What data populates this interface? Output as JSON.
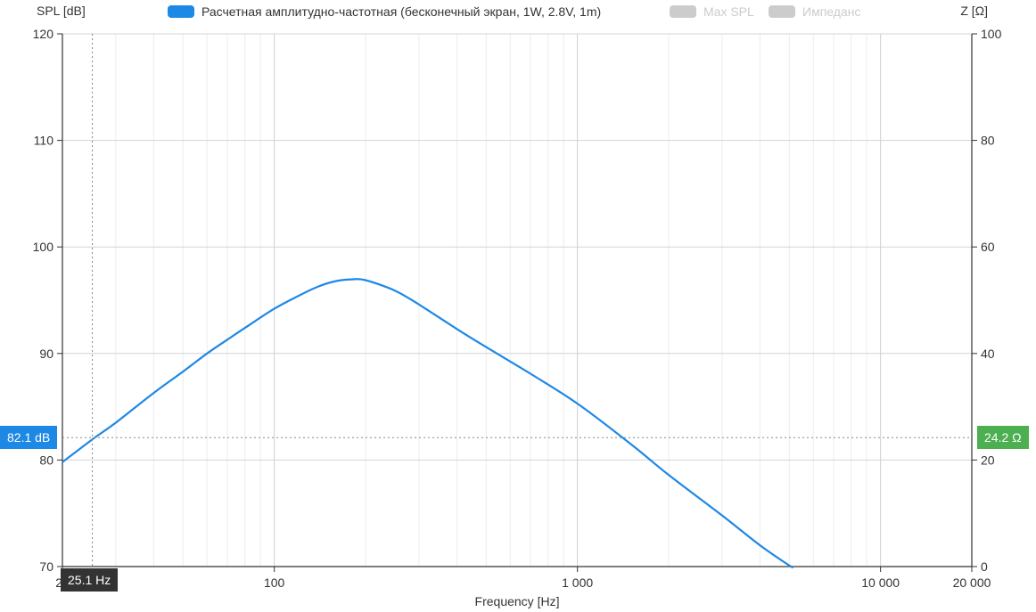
{
  "chart_data": {
    "type": "line",
    "xscale": "log",
    "xlabel": "Frequency [Hz]",
    "ylabel": "SPL [dB]",
    "y2label": "Z [Ω]",
    "xlim": [
      20,
      20000
    ],
    "ylim": [
      70,
      120
    ],
    "y2lim": [
      0,
      100
    ],
    "grid": true,
    "legend_position": "top",
    "x_tick_labels": [
      {
        "value": 20,
        "label": "20"
      },
      {
        "value": 100,
        "label": "100"
      },
      {
        "value": 1000,
        "label": "1 000"
      },
      {
        "value": 10000,
        "label": "10 000"
      },
      {
        "value": 20000,
        "label": "20 000"
      }
    ],
    "y_ticks": [
      70,
      80,
      90,
      100,
      110,
      120
    ],
    "y2_ticks": [
      0,
      20,
      40,
      60,
      80,
      100
    ],
    "series": [
      {
        "name": "Расчетная амплитудно-частотная (бесконечный экран, 1W, 2.8V, 1m)",
        "color": "#1e88e5",
        "visible": true,
        "x": [
          20,
          25,
          30,
          40,
          50,
          60,
          70,
          80,
          100,
          120,
          140,
          160,
          180,
          200,
          250,
          300,
          400,
          500,
          700,
          1000,
          1500,
          2000,
          3000,
          4000,
          5000,
          5500
        ],
        "y": [
          79.8,
          81.9,
          83.5,
          86.3,
          88.3,
          90.0,
          91.3,
          92.4,
          94.2,
          95.4,
          96.3,
          96.8,
          96.96,
          96.88,
          95.9,
          94.6,
          92.3,
          90.6,
          88.1,
          85.3,
          81.5,
          78.6,
          74.8,
          72.0,
          70.1,
          69.6
        ]
      },
      {
        "name": "Max SPL",
        "color": "#cccccc",
        "visible": false
      },
      {
        "name": "Импеданс",
        "color": "#cccccc",
        "visible": false
      }
    ],
    "crosshair": {
      "x": 25.1,
      "y": 82.1,
      "x_label": "25.1 Hz",
      "y_label": "82.1 dB",
      "y2_label": "24.2 Ω",
      "x_label_color": "#333333",
      "y_label_color": "#1e88e5",
      "y2_label_color": "#4caf50"
    }
  }
}
